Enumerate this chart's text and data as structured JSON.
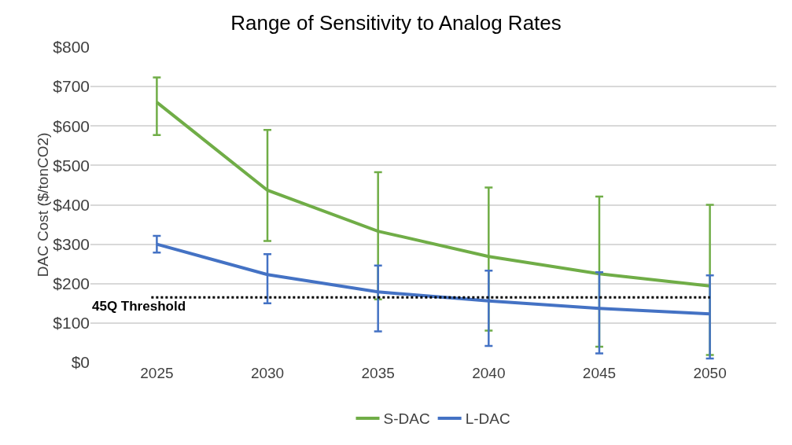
{
  "chart_data": {
    "type": "line",
    "title": "Range of Sensitivity to Analog Rates",
    "ylabel": "DAC Cost ($/tonCO2)",
    "categories": [
      "2025",
      "2030",
      "2035",
      "2040",
      "2045",
      "2050"
    ],
    "series": [
      {
        "name": "S-DAC",
        "color": "#70ad47",
        "values": [
          660,
          437,
          333,
          269,
          225,
          194
        ],
        "errors": [
          [
            577,
            723
          ],
          [
            308,
            590
          ],
          [
            160,
            483
          ],
          [
            81,
            444
          ],
          [
            40,
            421
          ],
          [
            19,
            400
          ]
        ]
      },
      {
        "name": "L-DAC",
        "color": "#4472c4",
        "values": [
          300,
          223,
          179,
          156,
          137,
          123
        ],
        "errors": [
          [
            279,
            321
          ],
          [
            150,
            275
          ],
          [
            79,
            246
          ],
          [
            42,
            233
          ],
          [
            23,
            229
          ],
          [
            10,
            221
          ]
        ]
      }
    ],
    "ylim": [
      0,
      800
    ],
    "yticks": [
      {
        "value": 0,
        "label": "$0"
      },
      {
        "value": 100,
        "label": "$100"
      },
      {
        "value": 200,
        "label": "$200"
      },
      {
        "value": 300,
        "label": "$300"
      },
      {
        "value": 400,
        "label": "$400"
      },
      {
        "value": 500,
        "label": "$500"
      },
      {
        "value": 600,
        "label": "$600"
      },
      {
        "value": 700,
        "label": "$700"
      },
      {
        "value": 800,
        "label": "$800"
      }
    ],
    "ref_lines": [
      {
        "axis": "y",
        "value": 165,
        "label": "45Q Threshold",
        "color": "#000000",
        "line_style": "dotted"
      }
    ],
    "grid": "y",
    "legend": "bottom",
    "line_style": "solid"
  }
}
